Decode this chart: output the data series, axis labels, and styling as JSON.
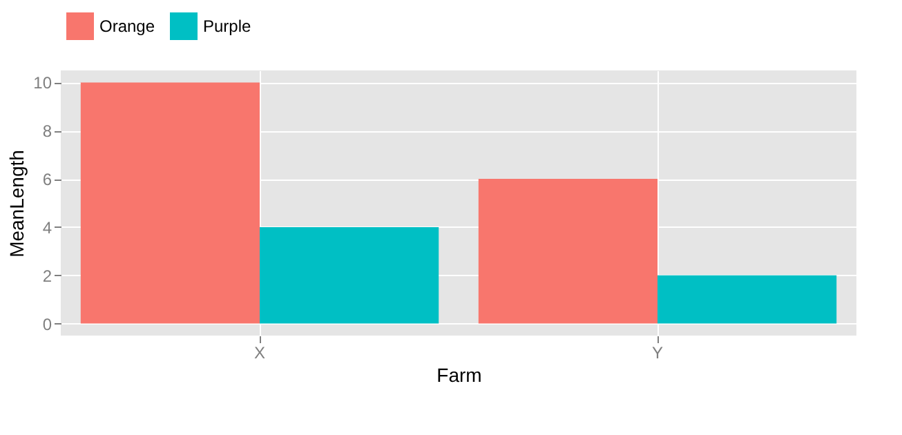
{
  "chart_data": {
    "type": "bar",
    "xlabel": "Farm",
    "ylabel": "MeanLength",
    "categories": [
      "X",
      "Y"
    ],
    "series": [
      {
        "name": "Orange",
        "color": "#f8766d",
        "values": [
          10,
          6
        ]
      },
      {
        "name": "Purple",
        "color": "#00bfc4",
        "values": [
          4,
          2
        ]
      }
    ],
    "ylim": [
      -0.5,
      10.5
    ],
    "yticks": [
      0,
      2,
      4,
      6,
      8,
      10
    ],
    "grid": true,
    "legend": "top"
  }
}
